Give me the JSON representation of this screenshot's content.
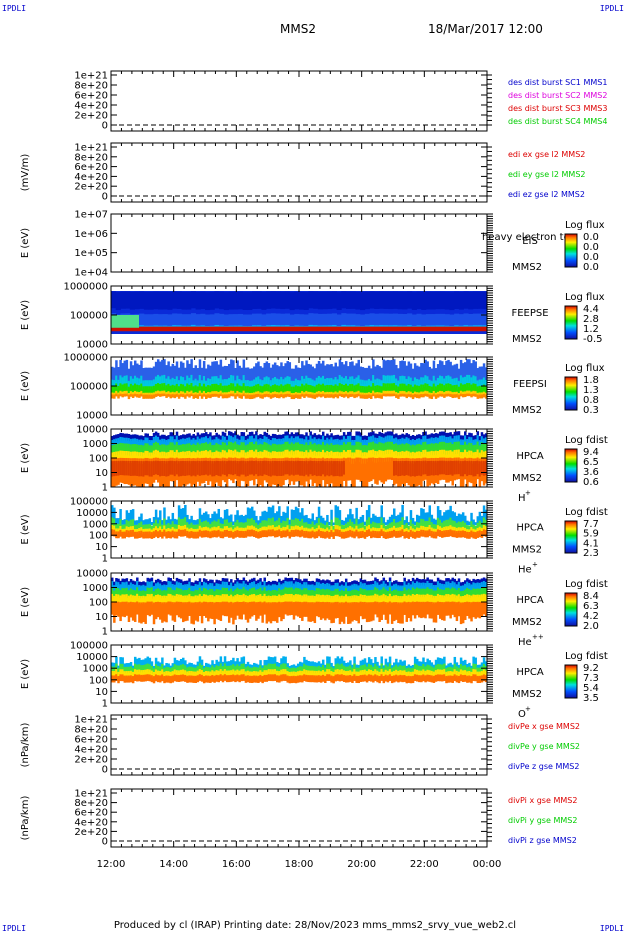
{
  "header": {
    "corner_text": "IPDLI",
    "spacecraft": "MMS2",
    "datetime": "18/Mar/2017 12:00"
  },
  "footer": {
    "text": "Produced by cl (IRAP)   Printing date: 28/Nov/2023   mms_mms2_srvy_vue_web2.cl"
  },
  "colors": {
    "blue": "#0000cc",
    "magenta": "#dd00dd",
    "red": "#dd0000",
    "green": "#00cc00"
  },
  "chart_data": {
    "type": "heatmap",
    "x_ticks": [
      "12:00",
      "14:00",
      "16:00",
      "18:00",
      "20:00",
      "22:00",
      "00:00"
    ],
    "panels": [
      {
        "id": "dist",
        "ylabel": "",
        "yticks": [
          "1e+21",
          "8e+20",
          "6e+20",
          "4e+20",
          "2e+20",
          "0"
        ],
        "legend": [
          {
            "label": "des dist burst SC1 MMS1",
            "color": "#0000cc"
          },
          {
            "label": "des dist burst SC2 MMS2",
            "color": "#dd00dd"
          },
          {
            "label": "des dist burst SC3 MMS3",
            "color": "#dd0000"
          },
          {
            "label": "des dist burst SC4 MMS4",
            "color": "#00cc00"
          }
        ]
      },
      {
        "id": "edi",
        "ylabel": "(mV/m)",
        "yticks": [
          "1e+21",
          "8e+20",
          "6e+20",
          "4e+20",
          "2e+20",
          "0"
        ],
        "legend": [
          {
            "label": "edi ex gse l2 MMS2",
            "color": "#dd0000"
          },
          {
            "label": "edi ey gse l2 MMS2",
            "color": "#00cc00"
          },
          {
            "label": "edi ez gse l2 MMS2",
            "color": "#0000cc"
          }
        ]
      },
      {
        "id": "eis",
        "ylabel": "E (eV)",
        "yticks": [
          "1e+07",
          "1e+06",
          "1e+05",
          "1e+04"
        ],
        "instrument": [
          "EIS",
          "MMS2"
        ],
        "overlay": "heavy electron to",
        "colorbar_title": "Log flux",
        "colorbar_ticks": [
          "0.0",
          "0.0",
          "0.0",
          "0.0"
        ]
      },
      {
        "id": "feepse",
        "ylabel": "E (eV)",
        "yticks": [
          "1000000",
          "100000",
          "10000"
        ],
        "instrument": [
          "FEEPSE",
          "MMS2"
        ],
        "colorbar_title": "Log flux",
        "colorbar_ticks": [
          "4.4",
          "2.8",
          "1.2",
          "-0.5"
        ]
      },
      {
        "id": "feepsi",
        "ylabel": "E (eV)",
        "yticks": [
          "1000000",
          "100000",
          "10000"
        ],
        "instrument": [
          "FEEPSI",
          "MMS2"
        ],
        "colorbar_title": "Log flux",
        "colorbar_ticks": [
          "1.8",
          "1.3",
          "0.8",
          "0.3"
        ]
      },
      {
        "id": "hpca_h",
        "ylabel": "E (eV)",
        "yticks": [
          "10000",
          "1000",
          "100",
          "10",
          "1"
        ],
        "instrument": [
          "HPCA",
          "MMS2"
        ],
        "species": "H",
        "charge": "+",
        "colorbar_title": "Log fdist",
        "colorbar_ticks": [
          "9.4",
          "6.5",
          "3.6",
          "0.6"
        ]
      },
      {
        "id": "hpca_he",
        "ylabel": "E (eV)",
        "yticks": [
          "100000",
          "10000",
          "1000",
          "100",
          "10",
          "1"
        ],
        "instrument": [
          "HPCA",
          "MMS2"
        ],
        "species": "He",
        "charge": "+",
        "colorbar_title": "Log fdist",
        "colorbar_ticks": [
          "7.7",
          "5.9",
          "4.1",
          "2.3"
        ]
      },
      {
        "id": "hpca_he2",
        "ylabel": "E (eV)",
        "yticks": [
          "10000",
          "1000",
          "100",
          "10",
          "1"
        ],
        "instrument": [
          "HPCA",
          "MMS2"
        ],
        "species": "He",
        "charge": "++",
        "colorbar_title": "Log fdist",
        "colorbar_ticks": [
          "8.4",
          "6.3",
          "4.2",
          "2.0"
        ]
      },
      {
        "id": "hpca_o",
        "ylabel": "E (eV)",
        "yticks": [
          "100000",
          "10000",
          "1000",
          "100",
          "10",
          "1"
        ],
        "instrument": [
          "HPCA",
          "MMS2"
        ],
        "species": "O",
        "charge": "+",
        "colorbar_title": "Log fdist",
        "colorbar_ticks": [
          "9.2",
          "7.3",
          "5.4",
          "3.5"
        ]
      },
      {
        "id": "divpe",
        "ylabel": "(nPa/km)",
        "yticks": [
          "1e+21",
          "8e+20",
          "6e+20",
          "4e+20",
          "2e+20",
          "0"
        ],
        "legend": [
          {
            "label": "divPe x gse MMS2",
            "color": "#dd0000"
          },
          {
            "label": "divPe y gse MMS2",
            "color": "#00cc00"
          },
          {
            "label": "divPe z gse MMS2",
            "color": "#0000cc"
          }
        ]
      },
      {
        "id": "divpi",
        "ylabel": "(nPa/km)",
        "yticks": [
          "1e+21",
          "8e+20",
          "6e+20",
          "4e+20",
          "2e+20",
          "0"
        ],
        "legend": [
          {
            "label": "divPi x gse MMS2",
            "color": "#dd0000"
          },
          {
            "label": "divPi y gse MMS2",
            "color": "#00cc00"
          },
          {
            "label": "divPi z gse MMS2",
            "color": "#0000cc"
          }
        ]
      }
    ]
  }
}
